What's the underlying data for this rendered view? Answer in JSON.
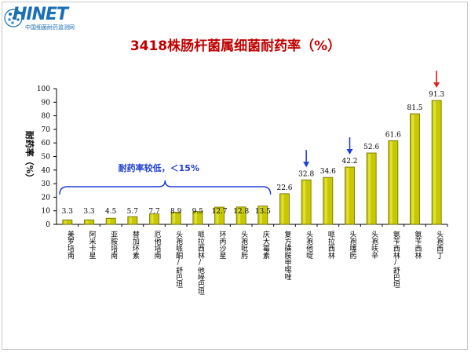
{
  "logo": {
    "name": "HINET",
    "subtitle": "中国细菌耐药监测网"
  },
  "chart_data": {
    "type": "bar",
    "title": "3418株肠杆菌属细菌耐药率（%）",
    "ylabel": "耐药率（%）",
    "ylim": [
      0,
      100
    ],
    "yticks": [
      0,
      10,
      20,
      30,
      40,
      50,
      60,
      70,
      80,
      90,
      100
    ],
    "categories": [
      "美罗培南",
      "阿米卡星",
      "亚胺培南",
      "替加环素",
      "厄他培南",
      "头孢哌酮/舒巴坦",
      "哌拉西林/他唑巴坦",
      "环丙沙星",
      "头孢吡肟",
      "庆大霉素",
      "复方磺胺甲噁唑",
      "头孢他啶",
      "哌拉西林",
      "头孢噻肟",
      "头孢呋辛",
      "氨苄西林/舒巴坦",
      "氨苄西林",
      "头孢西丁"
    ],
    "values": [
      3.3,
      3.3,
      4.5,
      5.7,
      7.7,
      8.9,
      9.5,
      12.7,
      12.8,
      13.5,
      22.6,
      32.8,
      34.6,
      42.2,
      52.6,
      61.6,
      81.5,
      91.3
    ],
    "bar_color": "#c8c800",
    "grid": false,
    "annotations": [
      {
        "text": "耐药率较低，＜15%",
        "color": "#1f3fd6",
        "brace_from": 0,
        "brace_to": 9
      }
    ],
    "arrows": [
      {
        "category_index": 11,
        "color": "#1f3fd6"
      },
      {
        "category_index": 13,
        "color": "#1f3fd6"
      },
      {
        "category_index": 17,
        "color": "#e02020"
      }
    ]
  }
}
